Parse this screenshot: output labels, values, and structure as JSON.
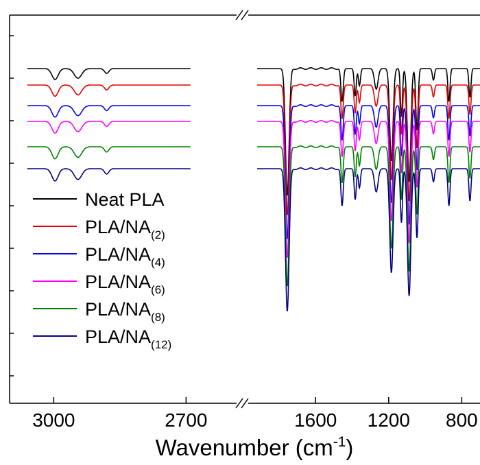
{
  "chart_data": {
    "type": "line",
    "xlabel": "Wavenumber (cm",
    "xlabel_sup": "-1",
    "xlabel_close": ")",
    "ylabel": "",
    "x_reversed": true,
    "broken_axis": true,
    "segments": [
      {
        "xlim": [
          3100,
          2570
        ],
        "ticks": [
          3000,
          2700
        ]
      },
      {
        "xlim": [
          1950,
          700
        ],
        "ticks": [
          1600,
          1200,
          800
        ]
      }
    ],
    "tick_labels": [
      "3000",
      "2700",
      "1600",
      "1200",
      "800"
    ],
    "legend_position": "lower-left",
    "series": [
      {
        "name": "Neat PLA",
        "sub": "",
        "color": "#000000",
        "offset": 0
      },
      {
        "name": "PLA/NA",
        "sub": "(2)",
        "color": "#e00000",
        "offset": 24
      },
      {
        "name": "PLA/NA",
        "sub": "(4)",
        "color": "#0000e0",
        "offset": 54
      },
      {
        "name": "PLA/NA",
        "sub": "(6)",
        "color": "#ff00ff",
        "offset": 77
      },
      {
        "name": "PLA/NA",
        "sub": "(8)",
        "color": "#008000",
        "offset": 114
      },
      {
        "name": "PLA/NA",
        "sub": "(12)",
        "color": "#00007f",
        "offset": 146
      }
    ],
    "bands": [
      {
        "x": 2997,
        "depth": 16,
        "width": 10,
        "region": 0
      },
      {
        "x": 2945,
        "depth": 14,
        "width": 12,
        "region": 0
      },
      {
        "x": 2880,
        "depth": 7,
        "width": 7,
        "region": 0
      },
      {
        "x": 1755,
        "depth": 185,
        "width": 14,
        "region": 1
      },
      {
        "x": 1455,
        "depth": 48,
        "width": 9,
        "region": 1
      },
      {
        "x": 1383,
        "depth": 40,
        "width": 8,
        "region": 1
      },
      {
        "x": 1360,
        "depth": 25,
        "width": 8,
        "region": 1
      },
      {
        "x": 1268,
        "depth": 30,
        "width": 14,
        "region": 1
      },
      {
        "x": 1185,
        "depth": 135,
        "width": 13,
        "region": 1
      },
      {
        "x": 1130,
        "depth": 70,
        "width": 8,
        "region": 1
      },
      {
        "x": 1088,
        "depth": 165,
        "width": 13,
        "region": 1
      },
      {
        "x": 1045,
        "depth": 90,
        "width": 9,
        "region": 1
      },
      {
        "x": 955,
        "depth": 17,
        "width": 8,
        "region": 1
      },
      {
        "x": 870,
        "depth": 48,
        "width": 8,
        "region": 1
      },
      {
        "x": 755,
        "depth": 42,
        "width": 8,
        "region": 1
      }
    ]
  }
}
